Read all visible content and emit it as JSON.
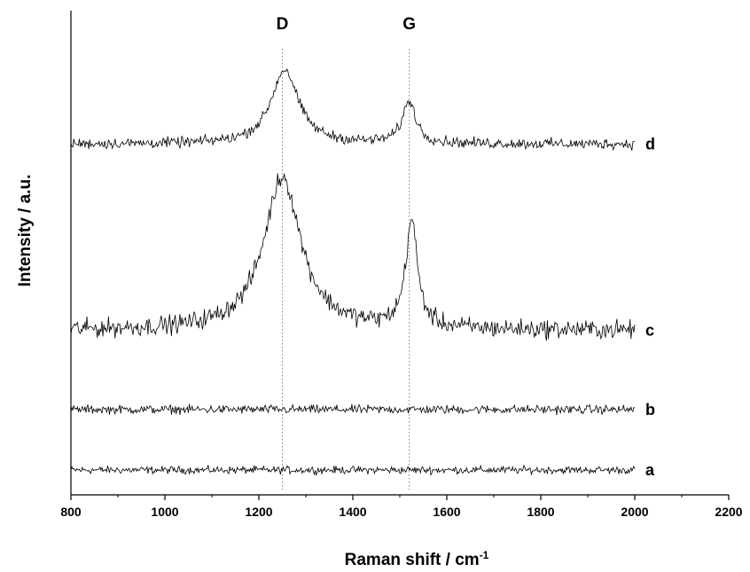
{
  "chart_data": {
    "type": "line",
    "xlabel": "Raman shift / cm",
    "xlabel_sup": "-1",
    "ylabel": "Intensity / a.u.",
    "xlim": [
      800,
      2200
    ],
    "x_ticks": [
      "800",
      "1000",
      "1200",
      "1400",
      "1600",
      "1800",
      "2000",
      "2200"
    ],
    "y_ticks_shown": false,
    "grid": false,
    "x_range_of_spectra": [
      800,
      2000
    ],
    "reference_lines": [
      {
        "label": "D",
        "x": 1250
      },
      {
        "label": "G",
        "x": 1520
      }
    ],
    "series": [
      {
        "name": "a",
        "baseline": 0.0,
        "noise": 0.012,
        "peaks": []
      },
      {
        "name": "b",
        "baseline": 0.13,
        "noise": 0.014,
        "peaks": []
      },
      {
        "name": "c",
        "baseline": 0.3,
        "noise": 0.03,
        "peaks": [
          {
            "center": 1250,
            "width": 95,
            "height": 0.33
          },
          {
            "center": 1525,
            "width": 30,
            "height": 0.23
          }
        ]
      },
      {
        "name": "d",
        "baseline": 0.7,
        "noise": 0.017,
        "peaks": [
          {
            "center": 1255,
            "width": 70,
            "height": 0.16
          },
          {
            "center": 1520,
            "width": 35,
            "height": 0.09
          }
        ]
      }
    ]
  }
}
